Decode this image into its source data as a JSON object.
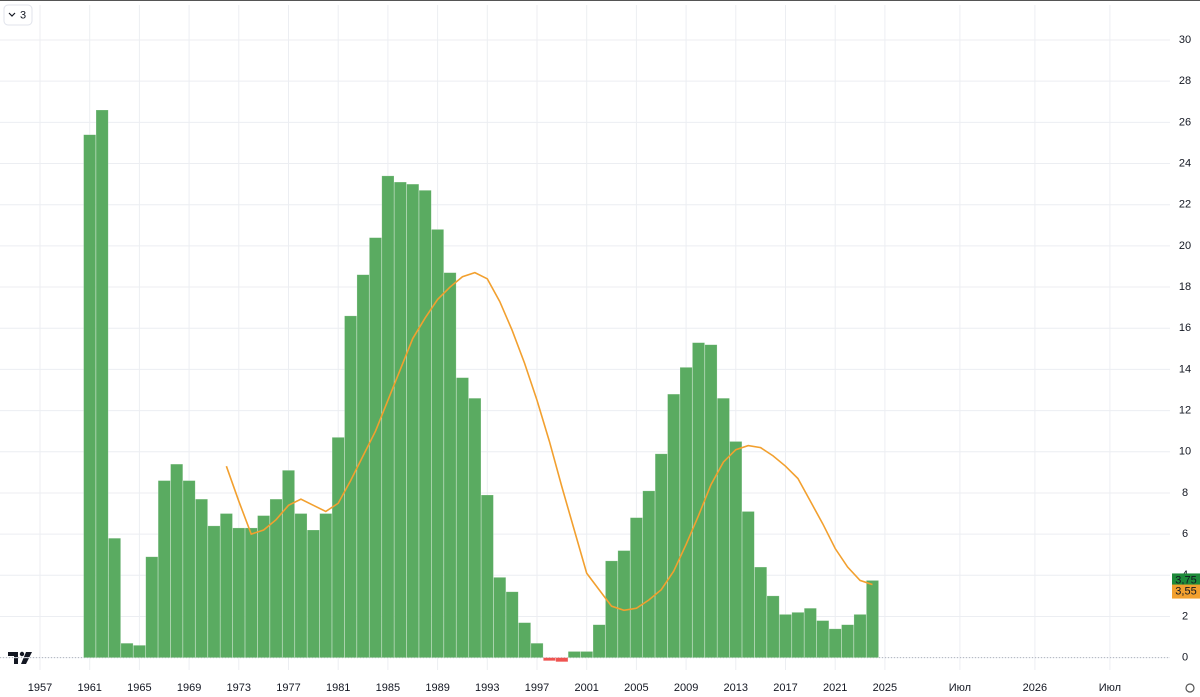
{
  "chart_data": {
    "type": "bar",
    "interval_badge": "3",
    "x": [
      1961,
      1962,
      1963,
      1964,
      1965,
      1966,
      1967,
      1968,
      1969,
      1970,
      1971,
      1972,
      1973,
      1974,
      1975,
      1976,
      1977,
      1978,
      1979,
      1980,
      1981,
      1982,
      1983,
      1984,
      1985,
      1986,
      1987,
      1988,
      1989,
      1990,
      1991,
      1992,
      1993,
      1994,
      1995,
      1996,
      1997,
      1998,
      1999,
      2000,
      2001,
      2002,
      2003,
      2004,
      2005,
      2006,
      2007,
      2008,
      2009,
      2010,
      2011,
      2012,
      2013,
      2014,
      2015,
      2016,
      2017,
      2018,
      2019,
      2020,
      2021,
      2022,
      2023,
      2024
    ],
    "series": [
      {
        "type": "bar",
        "color": "#5aab61",
        "negative_color": "#ef5350",
        "values": [
          25.4,
          26.6,
          5.8,
          0.7,
          0.6,
          4.9,
          8.6,
          9.4,
          8.6,
          7.7,
          6.4,
          7.0,
          6.3,
          6.3,
          6.9,
          7.7,
          9.1,
          7.0,
          6.2,
          7.0,
          10.7,
          16.6,
          18.6,
          20.4,
          23.4,
          23.1,
          23.0,
          22.7,
          20.8,
          18.7,
          13.6,
          12.6,
          7.9,
          3.9,
          3.2,
          1.7,
          0.7,
          -0.15,
          -0.2,
          0.3,
          0.3,
          1.6,
          4.7,
          5.2,
          6.8,
          8.1,
          9.9,
          12.8,
          14.1,
          15.3,
          15.2,
          12.6,
          10.5,
          7.1,
          4.4,
          3.0,
          2.1,
          2.2,
          2.4,
          1.8,
          1.4,
          1.6,
          2.1,
          3.75
        ],
        "value_labels": [
          null,
          null,
          null,
          null,
          null,
          null,
          null,
          null,
          null,
          null,
          null,
          null,
          null,
          null,
          null,
          null,
          null,
          null,
          null,
          null,
          null,
          null,
          null,
          null,
          null,
          null,
          null,
          null,
          null,
          null,
          null,
          null,
          null,
          null,
          null,
          null,
          null,
          null,
          null,
          null,
          null,
          null,
          null,
          null,
          null,
          null,
          null,
          null,
          null,
          null,
          null,
          null,
          null,
          null,
          null,
          null,
          null,
          null,
          null,
          null,
          null,
          null,
          null,
          "3,75"
        ]
      },
      {
        "type": "line",
        "color": "#f2a02f",
        "values": [
          null,
          null,
          null,
          null,
          null,
          null,
          null,
          null,
          null,
          null,
          null,
          9.3,
          7.6,
          6.0,
          6.2,
          6.7,
          7.4,
          7.7,
          7.4,
          7.1,
          7.5,
          8.6,
          9.8,
          11.0,
          12.5,
          14.0,
          15.5,
          16.5,
          17.4,
          18.0,
          18.5,
          18.7,
          18.4,
          17.3,
          15.9,
          14.3,
          12.5,
          10.5,
          8.3,
          6.2,
          4.1,
          3.3,
          2.5,
          2.3,
          2.4,
          2.8,
          3.3,
          4.2,
          5.5,
          6.9,
          8.4,
          9.5,
          10.1,
          10.3,
          10.2,
          9.8,
          9.3,
          8.7,
          7.6,
          6.5,
          5.3,
          4.4,
          3.75,
          3.55
        ],
        "value_labels": [
          null,
          null,
          null,
          null,
          null,
          null,
          null,
          null,
          null,
          null,
          null,
          null,
          null,
          null,
          null,
          null,
          null,
          null,
          null,
          null,
          null,
          null,
          null,
          null,
          null,
          null,
          null,
          null,
          null,
          null,
          null,
          null,
          null,
          null,
          null,
          null,
          null,
          null,
          null,
          null,
          null,
          null,
          null,
          null,
          null,
          null,
          null,
          null,
          null,
          null,
          null,
          null,
          null,
          null,
          null,
          null,
          null,
          null,
          null,
          null,
          null,
          null,
          null,
          "3,55"
        ]
      }
    ],
    "ylim": [
      -0.6,
      31.7
    ],
    "yticks": [
      0,
      2,
      4,
      6,
      8,
      10,
      12,
      14,
      16,
      18,
      20,
      22,
      24,
      26,
      28,
      30
    ],
    "xticks": [
      1957,
      1961,
      1965,
      1969,
      1973,
      1977,
      1981,
      1985,
      1989,
      1993,
      1997,
      2001,
      2005,
      2009,
      2013,
      2017,
      2021,
      2025
    ],
    "future_labels": [
      "Июл",
      "2026",
      "Июл"
    ],
    "grid": true
  }
}
